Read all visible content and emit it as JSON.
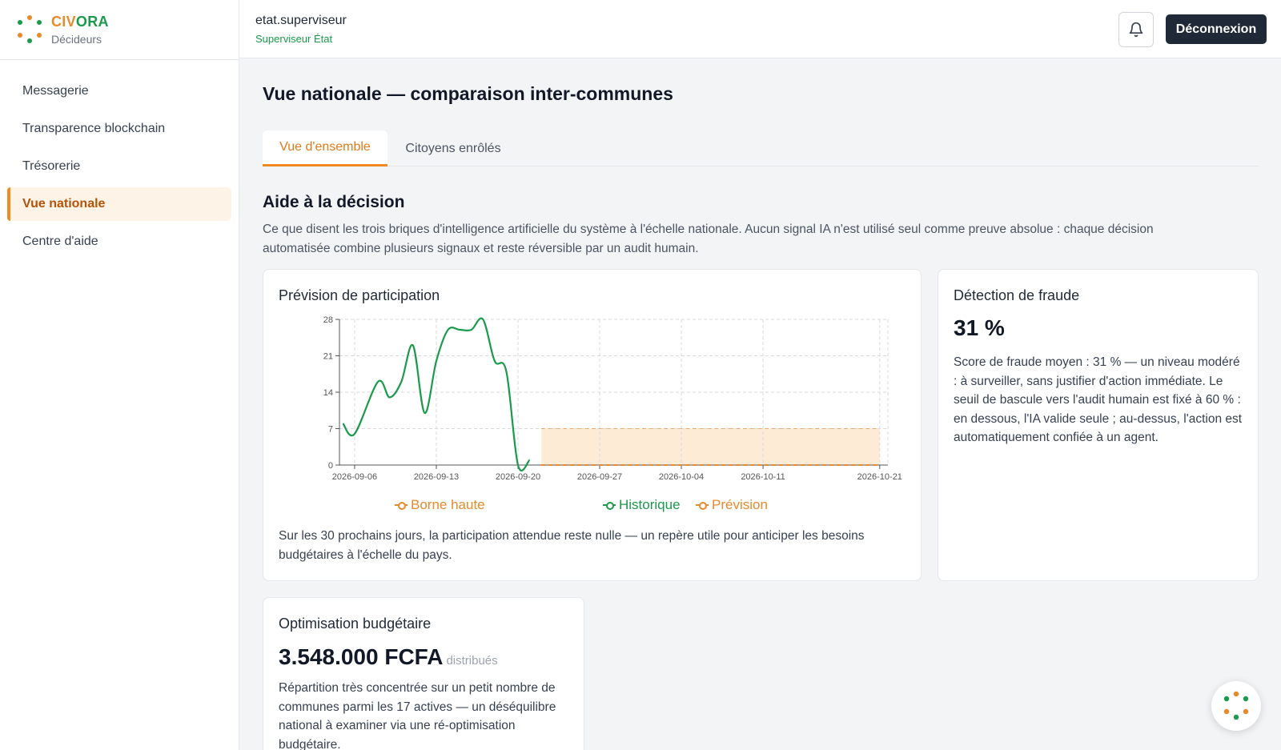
{
  "brand": {
    "name_part1": "CIV",
    "name_part2": "ORA",
    "subtitle": "Décideurs"
  },
  "sidebar": {
    "items": [
      {
        "label": "Messagerie",
        "active": false
      },
      {
        "label": "Transparence blockchain",
        "active": false
      },
      {
        "label": "Trésorerie",
        "active": false
      },
      {
        "label": "Vue nationale",
        "active": true
      },
      {
        "label": "Centre d'aide",
        "active": false
      }
    ]
  },
  "topbar": {
    "user_name": "etat.superviseur",
    "user_role": "Superviseur État",
    "bell_icon": "bell-icon",
    "logout_label": "Déconnexion"
  },
  "main": {
    "title": "Vue nationale — comparaison inter-communes",
    "tabs": [
      {
        "label": "Vue d'ensemble",
        "active": true
      },
      {
        "label": "Citoyens enrôlés",
        "active": false
      }
    ],
    "section_title": "Aide à la décision",
    "section_desc": "Ce que disent les trois briques d'intelligence artificielle du système à l'échelle nationale. Aucun signal IA n'est utilisé seul comme preuve absolue : chaque décision automatisée combine plusieurs signaux et reste réversible par un audit humain."
  },
  "participation": {
    "title": "Prévision de participation",
    "summary": "Sur les 30 prochains jours, la participation attendue reste nulle — un repère utile pour anticiper les besoins budgétaires à l'échelle du pays."
  },
  "fraud": {
    "title": "Détection de fraude",
    "value": "31 %",
    "text": "Score de fraude moyen : 31 % — un niveau modéré : à surveiller, sans justifier d'action immédiate. Le seuil de bascule vers l'audit humain est fixé à 60 % : en dessous, l'IA valide seule ; au-dessus, l'action est automatiquement confiée à un agent."
  },
  "budget": {
    "title": "Optimisation budgétaire",
    "value": "3.548.000 FCFA",
    "unit_note": "distribués",
    "text": "Répartition très concentrée sur un petit nombre de communes parmi les 17 actives — un déséquilibre national à examiner via une ré-optimisation budgétaire."
  },
  "chart_data": {
    "type": "line",
    "x_ticks": [
      "2026-09-06",
      "2026-09-13",
      "2026-09-20",
      "2026-09-27",
      "2026-10-04",
      "2026-10-11",
      "2026-10-21"
    ],
    "y_ticks": [
      0,
      7,
      14,
      21,
      28
    ],
    "ylim": [
      0,
      28
    ],
    "series": [
      {
        "name": "Historique",
        "color": "#1a9a4a",
        "x": [
          "2026-09-05",
          "2026-09-06",
          "2026-09-08",
          "2026-09-09",
          "2026-09-10",
          "2026-09-11",
          "2026-09-12",
          "2026-09-13",
          "2026-09-14",
          "2026-09-15",
          "2026-09-16",
          "2026-09-17",
          "2026-09-18",
          "2026-09-19",
          "2026-09-20",
          "2026-09-21"
        ],
        "values": [
          8,
          6,
          16,
          13,
          16,
          23,
          10,
          20,
          26,
          26,
          26,
          28,
          20,
          18,
          0,
          1
        ]
      },
      {
        "name": "Prévision",
        "color": "#e8892a",
        "x": [
          "2026-09-22",
          "2026-10-21"
        ],
        "values": [
          0,
          0
        ]
      },
      {
        "name": "Borne haute",
        "color": "#e8892a",
        "x": [
          "2026-09-22",
          "2026-10-21"
        ],
        "values": [
          7,
          7
        ]
      }
    ],
    "legend": [
      "Borne haute",
      "Historique",
      "Prévision"
    ],
    "grid": true,
    "band_color": "#fdebd6"
  }
}
